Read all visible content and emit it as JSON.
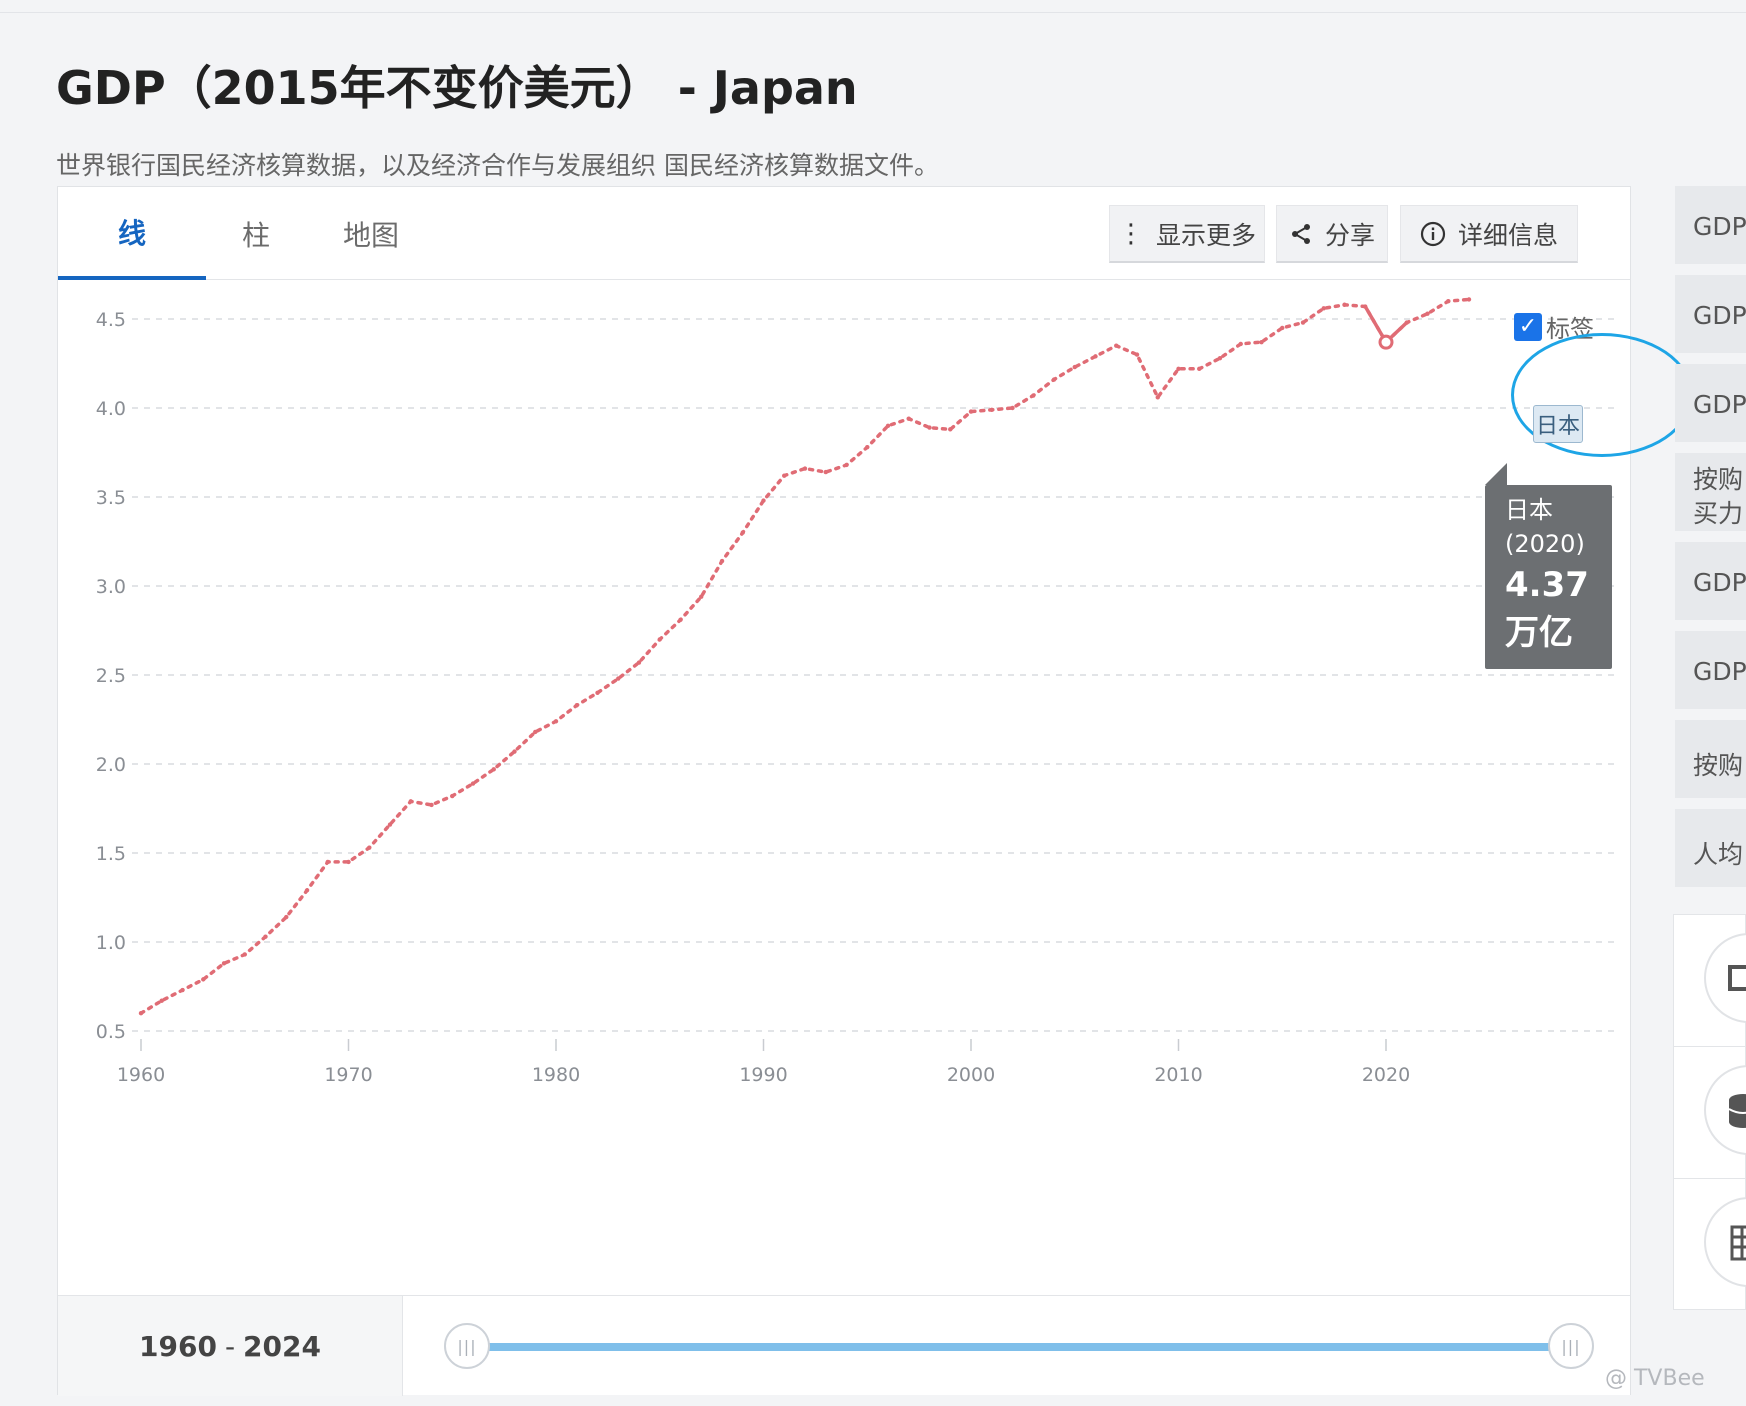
{
  "page": {
    "title": "GDP（2015年不变价美元） - Japan",
    "subtitle": "世界银行国民经济核算数据，以及经济合作与发展组织 国民经济核算数据文件。"
  },
  "tabs": [
    {
      "label": "线",
      "active": true
    },
    {
      "label": "柱",
      "active": false
    },
    {
      "label": "地图",
      "active": false
    }
  ],
  "toolbar": {
    "more_label": "显示更多",
    "share_label": "分享",
    "details_label": "详细信息"
  },
  "labels_toggle": {
    "label": "标签",
    "checked": true
  },
  "series_tag": "日本",
  "tooltip": {
    "name": "日本",
    "year": "(2020)",
    "value": "4.37",
    "unit": "万亿"
  },
  "range": {
    "start": "1960",
    "end": "2024"
  },
  "colors": {
    "line": "#e06c75",
    "accent": "#1565c0",
    "ring": "#1ea5e6",
    "slider": "#7fbfea"
  },
  "right_sidebar": {
    "items": [
      "GDP",
      "GDP",
      "GDP",
      "按购买力平价 国际元",
      "GDP",
      "GDP",
      "按购",
      "人均"
    ]
  },
  "watermark": "@ TVBee",
  "chart_data": {
    "type": "line",
    "title": "",
    "xlabel": "",
    "ylabel": "",
    "xlim": [
      1960,
      2024
    ],
    "ylim": [
      0.5,
      4.5
    ],
    "grid": true,
    "x_ticks": [
      1960,
      1970,
      1980,
      1990,
      2000,
      2010,
      2020
    ],
    "y_ticks": [
      "0.5",
      "1.0",
      "1.5",
      "2.0",
      "2.5",
      "3.0",
      "3.5",
      "4.0",
      "4.5"
    ],
    "x": [
      1960,
      1961,
      1962,
      1963,
      1964,
      1965,
      1966,
      1967,
      1968,
      1969,
      1970,
      1971,
      1972,
      1973,
      1974,
      1975,
      1976,
      1977,
      1978,
      1979,
      1980,
      1981,
      1982,
      1983,
      1984,
      1985,
      1986,
      1987,
      1988,
      1989,
      1990,
      1991,
      1992,
      1993,
      1994,
      1995,
      1996,
      1997,
      1998,
      1999,
      2000,
      2001,
      2002,
      2003,
      2004,
      2005,
      2006,
      2007,
      2008,
      2009,
      2010,
      2011,
      2012,
      2013,
      2014,
      2015,
      2016,
      2017,
      2018,
      2019,
      2020,
      2021,
      2022,
      2023,
      2024
    ],
    "series": [
      {
        "name": "日本",
        "values": [
          0.6,
          0.67,
          0.73,
          0.79,
          0.88,
          0.93,
          1.03,
          1.14,
          1.29,
          1.45,
          1.45,
          1.53,
          1.66,
          1.79,
          1.77,
          1.82,
          1.89,
          1.97,
          2.07,
          2.18,
          2.24,
          2.33,
          2.4,
          2.48,
          2.57,
          2.7,
          2.81,
          2.94,
          3.14,
          3.3,
          3.48,
          3.62,
          3.66,
          3.64,
          3.68,
          3.78,
          3.9,
          3.94,
          3.89,
          3.88,
          3.98,
          3.99,
          4.0,
          4.07,
          4.16,
          4.23,
          4.29,
          4.35,
          4.3,
          4.06,
          4.22,
          4.22,
          4.28,
          4.36,
          4.37,
          4.45,
          4.48,
          4.56,
          4.58,
          4.57,
          4.37,
          4.48,
          4.53,
          4.6,
          4.61
        ]
      }
    ],
    "highlight": {
      "x": 2020,
      "value": 4.37
    }
  }
}
